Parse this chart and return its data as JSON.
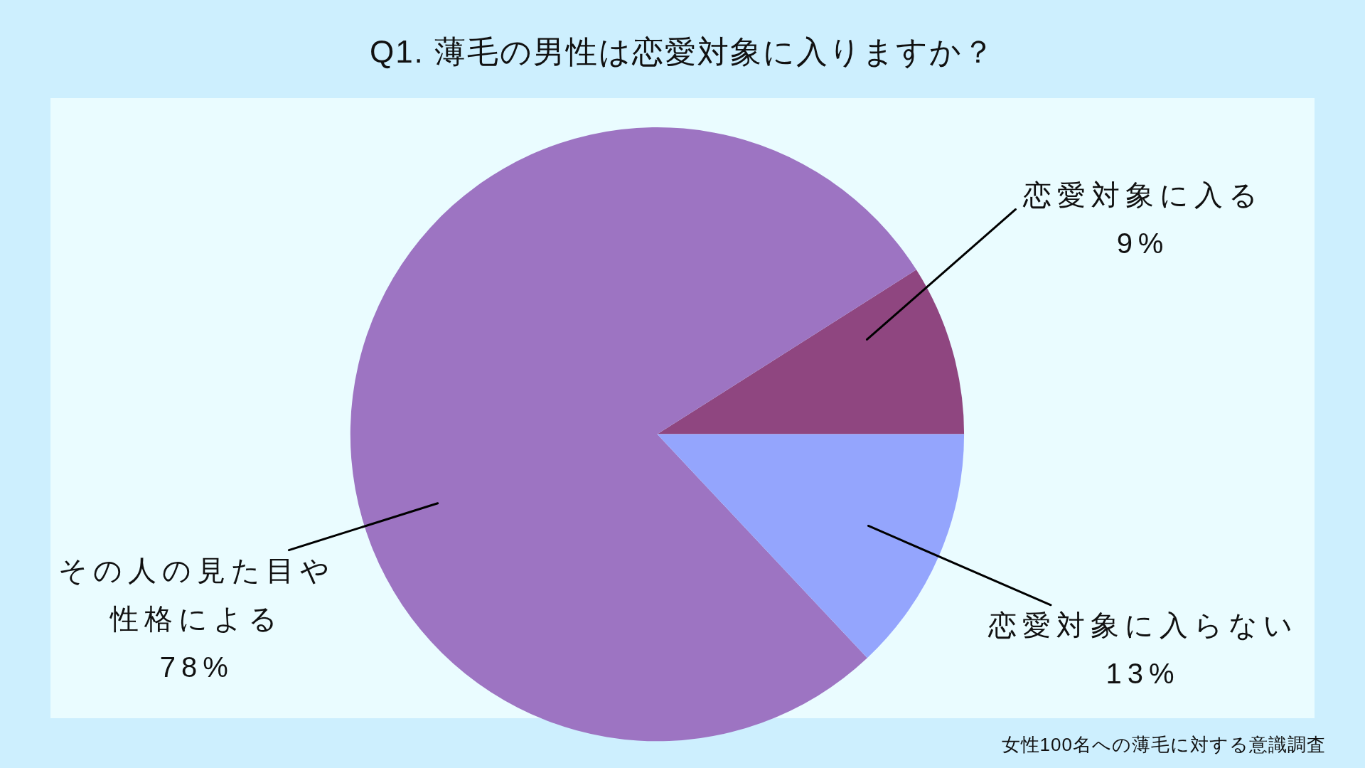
{
  "chart_data": {
    "type": "pie",
    "title": "Q1. 薄毛の男性は恋愛対象に入りますか？",
    "categories": [
      "恋愛対象に入る",
      "その人の見た目や性格による",
      "恋愛対象に入らない"
    ],
    "values": [
      9,
      78,
      13
    ],
    "colors": [
      "#8f4680",
      "#9d74c2",
      "#94a5fd"
    ],
    "value_labels": [
      "9%",
      "78%",
      "13%"
    ],
    "annotations": [
      "女性100名への薄毛に対する意識調査"
    ]
  }
}
